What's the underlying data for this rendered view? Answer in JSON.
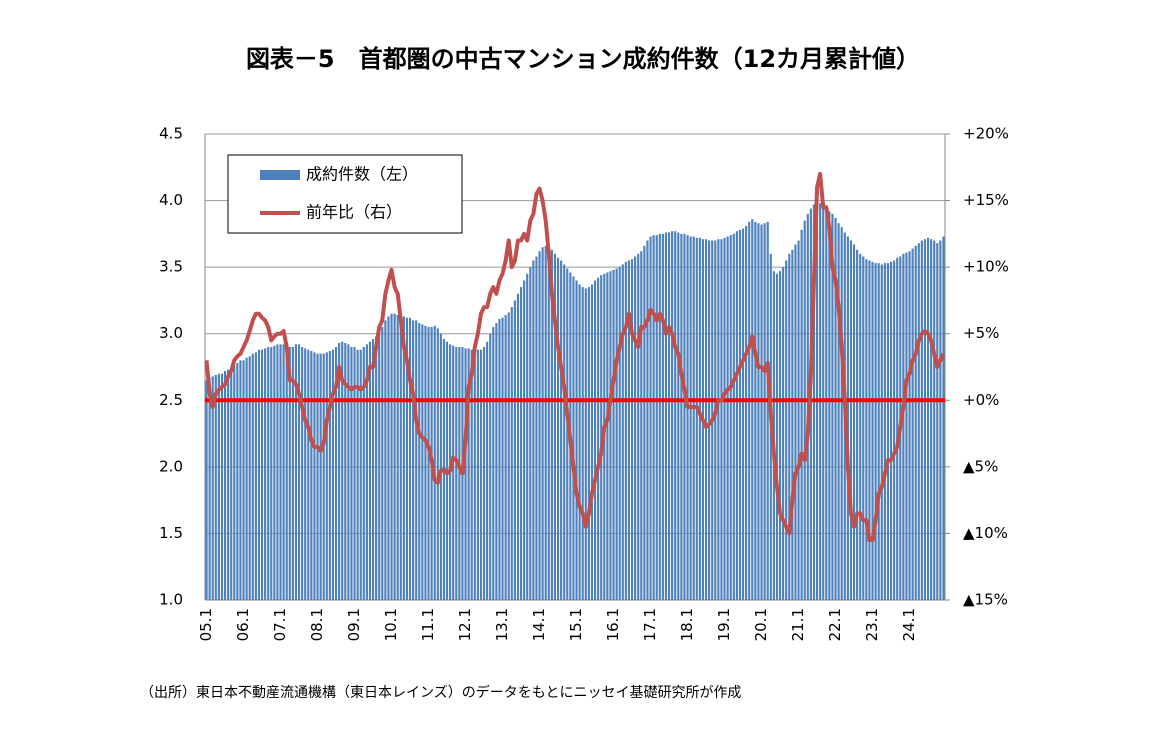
{
  "chart_data": {
    "type": "bar_line",
    "title": "図表－5　首都圏の中古マンション成約件数（12カ月累計値）",
    "footnote": "（出所）東日本不動産流通機構（東日本レインズ）のデータをもとにニッセイ基礎研究所が作成",
    "categories": [
      "05.1",
      null,
      null,
      null,
      null,
      null,
      null,
      null,
      null,
      null,
      null,
      null,
      "06.1",
      null,
      null,
      null,
      null,
      null,
      null,
      null,
      null,
      null,
      null,
      null,
      "07.1",
      null,
      null,
      null,
      null,
      null,
      null,
      null,
      null,
      null,
      null,
      null,
      "08.1",
      null,
      null,
      null,
      null,
      null,
      null,
      null,
      null,
      null,
      null,
      null,
      "09.1",
      null,
      null,
      null,
      null,
      null,
      null,
      null,
      null,
      null,
      null,
      null,
      "10.1",
      null,
      null,
      null,
      null,
      null,
      null,
      null,
      null,
      null,
      null,
      null,
      "11.1",
      null,
      null,
      null,
      null,
      null,
      null,
      null,
      null,
      null,
      null,
      null,
      "12.1",
      null,
      null,
      null,
      null,
      null,
      null,
      null,
      null,
      null,
      null,
      null,
      "13.1",
      null,
      null,
      null,
      null,
      null,
      null,
      null,
      null,
      null,
      null,
      null,
      "14.1",
      null,
      null,
      null,
      null,
      null,
      null,
      null,
      null,
      null,
      null,
      null,
      "15.1",
      null,
      null,
      null,
      null,
      null,
      null,
      null,
      null,
      null,
      null,
      null,
      "16.1",
      null,
      null,
      null,
      null,
      null,
      null,
      null,
      null,
      null,
      null,
      null,
      "17.1",
      null,
      null,
      null,
      null,
      null,
      null,
      null,
      null,
      null,
      null,
      null,
      "18.1",
      null,
      null,
      null,
      null,
      null,
      null,
      null,
      null,
      null,
      null,
      null,
      "19.1",
      null,
      null,
      null,
      null,
      null,
      null,
      null,
      null,
      null,
      null,
      null,
      "20.1",
      null,
      null,
      null,
      null,
      null,
      null,
      null,
      null,
      null,
      null,
      null,
      "21.1",
      null,
      null,
      null,
      null,
      null,
      null,
      null,
      null,
      null,
      null,
      null,
      "22.1",
      null,
      null,
      null,
      null,
      null,
      null,
      null,
      null,
      null,
      null,
      null,
      "23.1",
      null,
      null,
      null,
      null,
      null,
      null,
      null,
      null,
      null,
      null,
      null,
      "24.1",
      null,
      null,
      null,
      null,
      null,
      null,
      null,
      null,
      null,
      null,
      null
    ],
    "series": [
      {
        "name": "成約件数（左）",
        "type": "bar",
        "color": "#4f81bd",
        "values": [
          2.65,
          2.67,
          2.68,
          2.69,
          2.7,
          2.7,
          2.72,
          2.73,
          2.74,
          2.76,
          2.78,
          2.8,
          2.8,
          2.82,
          2.83,
          2.85,
          2.86,
          2.88,
          2.88,
          2.89,
          2.9,
          2.9,
          2.91,
          2.92,
          2.92,
          2.92,
          2.91,
          2.9,
          2.9,
          2.92,
          2.92,
          2.9,
          2.89,
          2.88,
          2.87,
          2.86,
          2.85,
          2.85,
          2.85,
          2.86,
          2.87,
          2.88,
          2.9,
          2.93,
          2.94,
          2.93,
          2.92,
          2.9,
          2.9,
          2.88,
          2.88,
          2.9,
          2.92,
          2.94,
          2.96,
          2.98,
          3.0,
          3.05,
          3.1,
          3.13,
          3.15,
          3.15,
          3.14,
          3.14,
          3.13,
          3.12,
          3.12,
          3.1,
          3.1,
          3.08,
          3.07,
          3.06,
          3.05,
          3.05,
          3.06,
          3.04,
          3.0,
          2.96,
          2.94,
          2.92,
          2.91,
          2.9,
          2.9,
          2.9,
          2.89,
          2.89,
          2.88,
          2.88,
          2.88,
          2.88,
          2.9,
          2.94,
          3.0,
          3.05,
          3.08,
          3.11,
          3.12,
          3.14,
          3.16,
          3.2,
          3.25,
          3.3,
          3.35,
          3.4,
          3.45,
          3.5,
          3.55,
          3.58,
          3.62,
          3.65,
          3.66,
          3.65,
          3.63,
          3.6,
          3.57,
          3.55,
          3.52,
          3.49,
          3.46,
          3.43,
          3.4,
          3.37,
          3.35,
          3.34,
          3.35,
          3.37,
          3.4,
          3.42,
          3.44,
          3.45,
          3.46,
          3.47,
          3.48,
          3.49,
          3.5,
          3.52,
          3.54,
          3.55,
          3.56,
          3.58,
          3.6,
          3.62,
          3.66,
          3.7,
          3.73,
          3.74,
          3.74,
          3.75,
          3.75,
          3.76,
          3.76,
          3.77,
          3.77,
          3.76,
          3.75,
          3.75,
          3.74,
          3.73,
          3.73,
          3.72,
          3.72,
          3.71,
          3.71,
          3.7,
          3.7,
          3.7,
          3.71,
          3.71,
          3.72,
          3.73,
          3.74,
          3.75,
          3.77,
          3.78,
          3.79,
          3.81,
          3.84,
          3.86,
          3.84,
          3.83,
          3.82,
          3.83,
          3.84,
          3.6,
          3.47,
          3.45,
          3.47,
          3.5,
          3.55,
          3.6,
          3.63,
          3.67,
          3.7,
          3.78,
          3.85,
          3.9,
          3.94,
          3.97,
          3.98,
          3.98,
          3.97,
          3.95,
          3.92,
          3.9,
          3.87,
          3.83,
          3.8,
          3.76,
          3.73,
          3.7,
          3.67,
          3.63,
          3.6,
          3.58,
          3.56,
          3.55,
          3.54,
          3.53,
          3.53,
          3.52,
          3.53,
          3.53,
          3.54,
          3.55,
          3.57,
          3.58,
          3.6,
          3.61,
          3.62,
          3.64,
          3.66,
          3.68,
          3.7,
          3.71,
          3.72,
          3.71,
          3.7,
          3.68,
          3.7,
          3.73
        ]
      },
      {
        "name": "前年比（右）",
        "type": "line",
        "axis": "y2",
        "color": "#c0504d",
        "values": [
          3.0,
          0.5,
          -0.5,
          0.5,
          0.8,
          1.0,
          1.2,
          1.8,
          2.2,
          3.0,
          3.3,
          3.5,
          4.0,
          4.5,
          5.2,
          6.0,
          6.5,
          6.5,
          6.2,
          6.0,
          5.5,
          4.5,
          4.8,
          5.0,
          5.0,
          5.2,
          4.0,
          1.5,
          1.5,
          1.2,
          0.5,
          -0.5,
          -1.5,
          -2.0,
          -3.0,
          -3.5,
          -3.5,
          -3.8,
          -3.2,
          -1.5,
          -0.5,
          0.5,
          1.0,
          2.5,
          1.5,
          1.2,
          1.0,
          0.8,
          1.0,
          1.0,
          0.8,
          1.0,
          1.5,
          2.5,
          2.5,
          4.0,
          5.5,
          6.0,
          8.0,
          9.0,
          9.8,
          8.5,
          8.0,
          6.0,
          4.0,
          3.0,
          1.5,
          0.5,
          -1.5,
          -2.5,
          -2.8,
          -3.0,
          -3.5,
          -4.5,
          -6.0,
          -6.2,
          -5.3,
          -5.2,
          -5.5,
          -5.3,
          -4.3,
          -4.5,
          -5.0,
          -5.5,
          -3.0,
          1.0,
          2.0,
          4.0,
          5.0,
          6.5,
          7.0,
          7.0,
          8.0,
          8.5,
          8.0,
          9.0,
          9.5,
          10.5,
          12.0,
          10.0,
          10.5,
          12.0,
          12.0,
          12.5,
          12.0,
          13.5,
          14.0,
          15.5,
          15.9,
          15.0,
          13.5,
          11.0,
          8.0,
          6.0,
          4.0,
          2.5,
          1.0,
          -1.0,
          -3.0,
          -5.0,
          -7.0,
          -8.0,
          -8.5,
          -9.5,
          -8.5,
          -7.0,
          -6.0,
          -5.0,
          -4.0,
          -2.0,
          -1.5,
          0.0,
          1.5,
          3.0,
          4.0,
          5.0,
          5.5,
          6.5,
          5.0,
          4.5,
          4.0,
          5.5,
          5.5,
          6.0,
          6.8,
          6.5,
          6.0,
          6.5,
          6.0,
          5.0,
          5.5,
          5.0,
          4.0,
          3.5,
          2.0,
          0.8,
          -0.5,
          -0.5,
          -0.5,
          -0.5,
          -1.0,
          -1.5,
          -2.0,
          -1.8,
          -1.5,
          -1.0,
          0.0,
          0.0,
          0.5,
          0.8,
          1.0,
          1.5,
          2.0,
          2.5,
          3.0,
          3.5,
          4.0,
          4.8,
          3.5,
          2.5,
          2.5,
          2.2,
          2.8,
          -1.0,
          -4.0,
          -6.5,
          -8.5,
          -9.0,
          -9.5,
          -10.0,
          -7.5,
          -5.5,
          -5.0,
          -4.0,
          -4.5,
          -2.5,
          2.0,
          9.0,
          16.0,
          17.0,
          14.5,
          14.5,
          13.0,
          10.0,
          9.0,
          7.0,
          4.0,
          0.0,
          -5.0,
          -8.5,
          -9.5,
          -8.5,
          -8.5,
          -9.0,
          -9.0,
          -10.5,
          -10.5,
          -9.0,
          -7.0,
          -6.5,
          -5.5,
          -4.5,
          -4.5,
          -4.0,
          -3.5,
          -2.0,
          -0.5,
          1.5,
          2.0,
          3.0,
          3.5,
          4.5,
          5.0,
          5.2,
          5.0,
          4.5,
          3.5,
          2.5,
          3.0,
          3.5
        ]
      }
    ],
    "ylim": [
      1,
      4.5
    ],
    "yticks": [
      {
        "value": 1,
        "label": "1.0"
      },
      1.5,
      {
        "value": 2,
        "label": "2.0"
      },
      2.5,
      {
        "value": 3,
        "label": "3.0"
      },
      3.5,
      {
        "value": 4,
        "label": "4.0"
      },
      4.5
    ],
    "y2lim": [
      -15,
      20
    ],
    "y2ticks": [
      {
        "value": -15,
        "label": "▲15%"
      },
      {
        "value": -10,
        "label": "▲10%"
      },
      {
        "value": -5,
        "label": "▲5%"
      },
      {
        "value": 0,
        "label": "+0%"
      },
      {
        "value": 5,
        "label": "+5%"
      },
      {
        "value": 10,
        "label": "+10%"
      },
      {
        "value": 15,
        "label": "+15%"
      },
      {
        "value": 20,
        "label": "+20%"
      }
    ],
    "reference_line": {
      "value": 0,
      "axis": "y2",
      "color": "#ff0000"
    },
    "grid": true,
    "legend": "upper left"
  }
}
